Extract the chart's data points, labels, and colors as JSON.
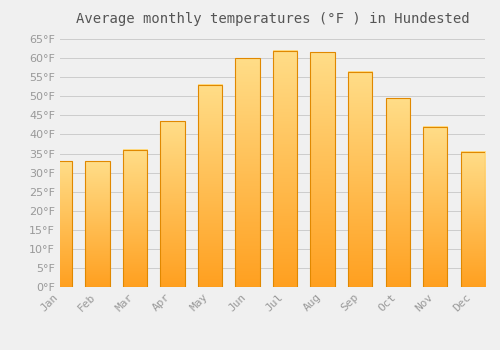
{
  "title": "Average monthly temperatures (°F ) in Hundested",
  "months": [
    "Jan",
    "Feb",
    "Mar",
    "Apr",
    "May",
    "Jun",
    "Jul",
    "Aug",
    "Sep",
    "Oct",
    "Nov",
    "Dec"
  ],
  "values": [
    33,
    33,
    36,
    43.5,
    53,
    60,
    62,
    61.5,
    56.5,
    49.5,
    42,
    35.5
  ],
  "bar_color_top": "#FFDD88",
  "bar_color_bottom": "#FFA020",
  "bar_edge_color": "#E08800",
  "background_color": "#F0F0F0",
  "grid_color": "#CCCCCC",
  "ylim": [
    0,
    67
  ],
  "yticks": [
    0,
    5,
    10,
    15,
    20,
    25,
    30,
    35,
    40,
    45,
    50,
    55,
    60,
    65
  ],
  "title_fontsize": 10,
  "tick_fontsize": 8,
  "font_color": "#999999",
  "title_color": "#555555"
}
